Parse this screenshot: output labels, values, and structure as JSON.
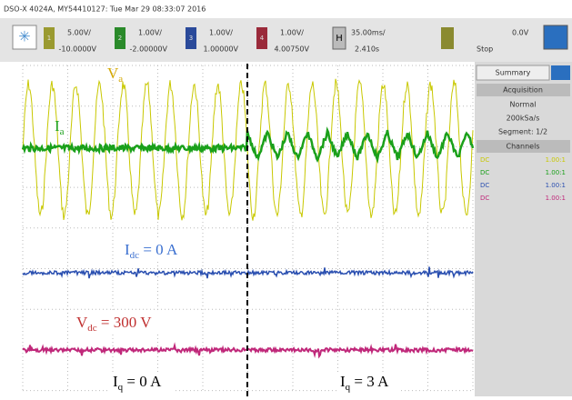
{
  "header": {
    "title": "DSO-X 4024A, MY54410127: Tue Mar 29 08:33:07 2016"
  },
  "toolbar": {
    "channels": [
      {
        "number": "1",
        "scale": "5.00V/",
        "offset": "-10.0000V"
      },
      {
        "number": "2",
        "scale": "1.00V/",
        "offset": "-2.00000V"
      },
      {
        "number": "3",
        "scale": "1.00V/",
        "offset": "1.00000V"
      },
      {
        "number": "4",
        "scale": "1.00V/",
        "offset": "4.00750V"
      }
    ],
    "horizontal": {
      "key": "H",
      "scale": "35.00ms/",
      "position": "2.410s"
    },
    "trigger": {
      "level": "0.0V",
      "state": "Stop"
    }
  },
  "side_panel": {
    "tab": "Summary",
    "acquisition": "Acquisition",
    "mode": "Normal",
    "rate": "200kSa/s",
    "segment": "Segment: 1/2",
    "channels": "Channels",
    "rows": [
      {
        "coupling": "DC",
        "probe": "1.00:1"
      },
      {
        "coupling": "DC",
        "probe": "1.00:1"
      },
      {
        "coupling": "DC",
        "probe": "1.00:1"
      },
      {
        "coupling": "DC",
        "probe": "1.00:1"
      }
    ]
  },
  "annotations": {
    "va": {
      "main": "V",
      "sub": "a"
    },
    "ia": {
      "main": "I",
      "sub": "a"
    },
    "idc": {
      "main": "I",
      "sub": "dc",
      "rest": " = 0 A"
    },
    "vdc": {
      "main": "V",
      "sub": "dc",
      "rest": " = 300 V"
    },
    "iq0": {
      "main": "I",
      "sub": "q",
      "rest": " = 0 A"
    },
    "iq3": {
      "main": "I",
      "sub": "q",
      "rest": " = 3 A"
    }
  }
}
